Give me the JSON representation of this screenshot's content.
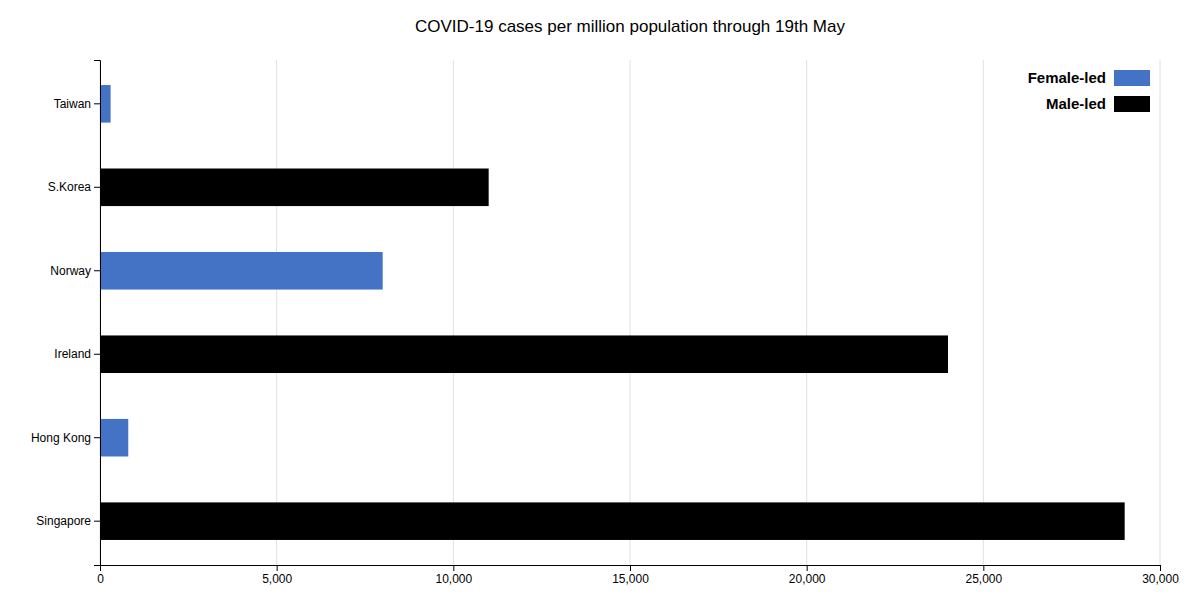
{
  "chart_data": {
    "type": "bar",
    "orientation": "horizontal",
    "stacked": true,
    "title": "COVID-19 cases per million population through 19th May",
    "categories": [
      "Taiwan",
      "S.Korea",
      "Norway",
      "Ireland",
      "Hong Kong",
      "Singapore"
    ],
    "series": [
      {
        "name": "Female-led",
        "color": "#4472C4",
        "values": [
          300,
          null,
          8000,
          null,
          800,
          null
        ]
      },
      {
        "name": "Male-led",
        "color": "#000000",
        "values": [
          null,
          11000,
          null,
          24000,
          null,
          29000
        ]
      }
    ],
    "xlim": [
      0,
      30000
    ],
    "xticks": [
      0,
      {
        "value": 5000,
        "label": "5,000"
      },
      {
        "value": 10000,
        "label": "10,000"
      },
      {
        "value": 15000,
        "label": "15,000"
      },
      {
        "value": 20000,
        "label": "20,000"
      },
      {
        "value": 25000,
        "label": "25,000"
      },
      {
        "value": 30000,
        "label": "30,000"
      }
    ],
    "grid": true,
    "legend": "upper right",
    "tick_labels": true
  }
}
